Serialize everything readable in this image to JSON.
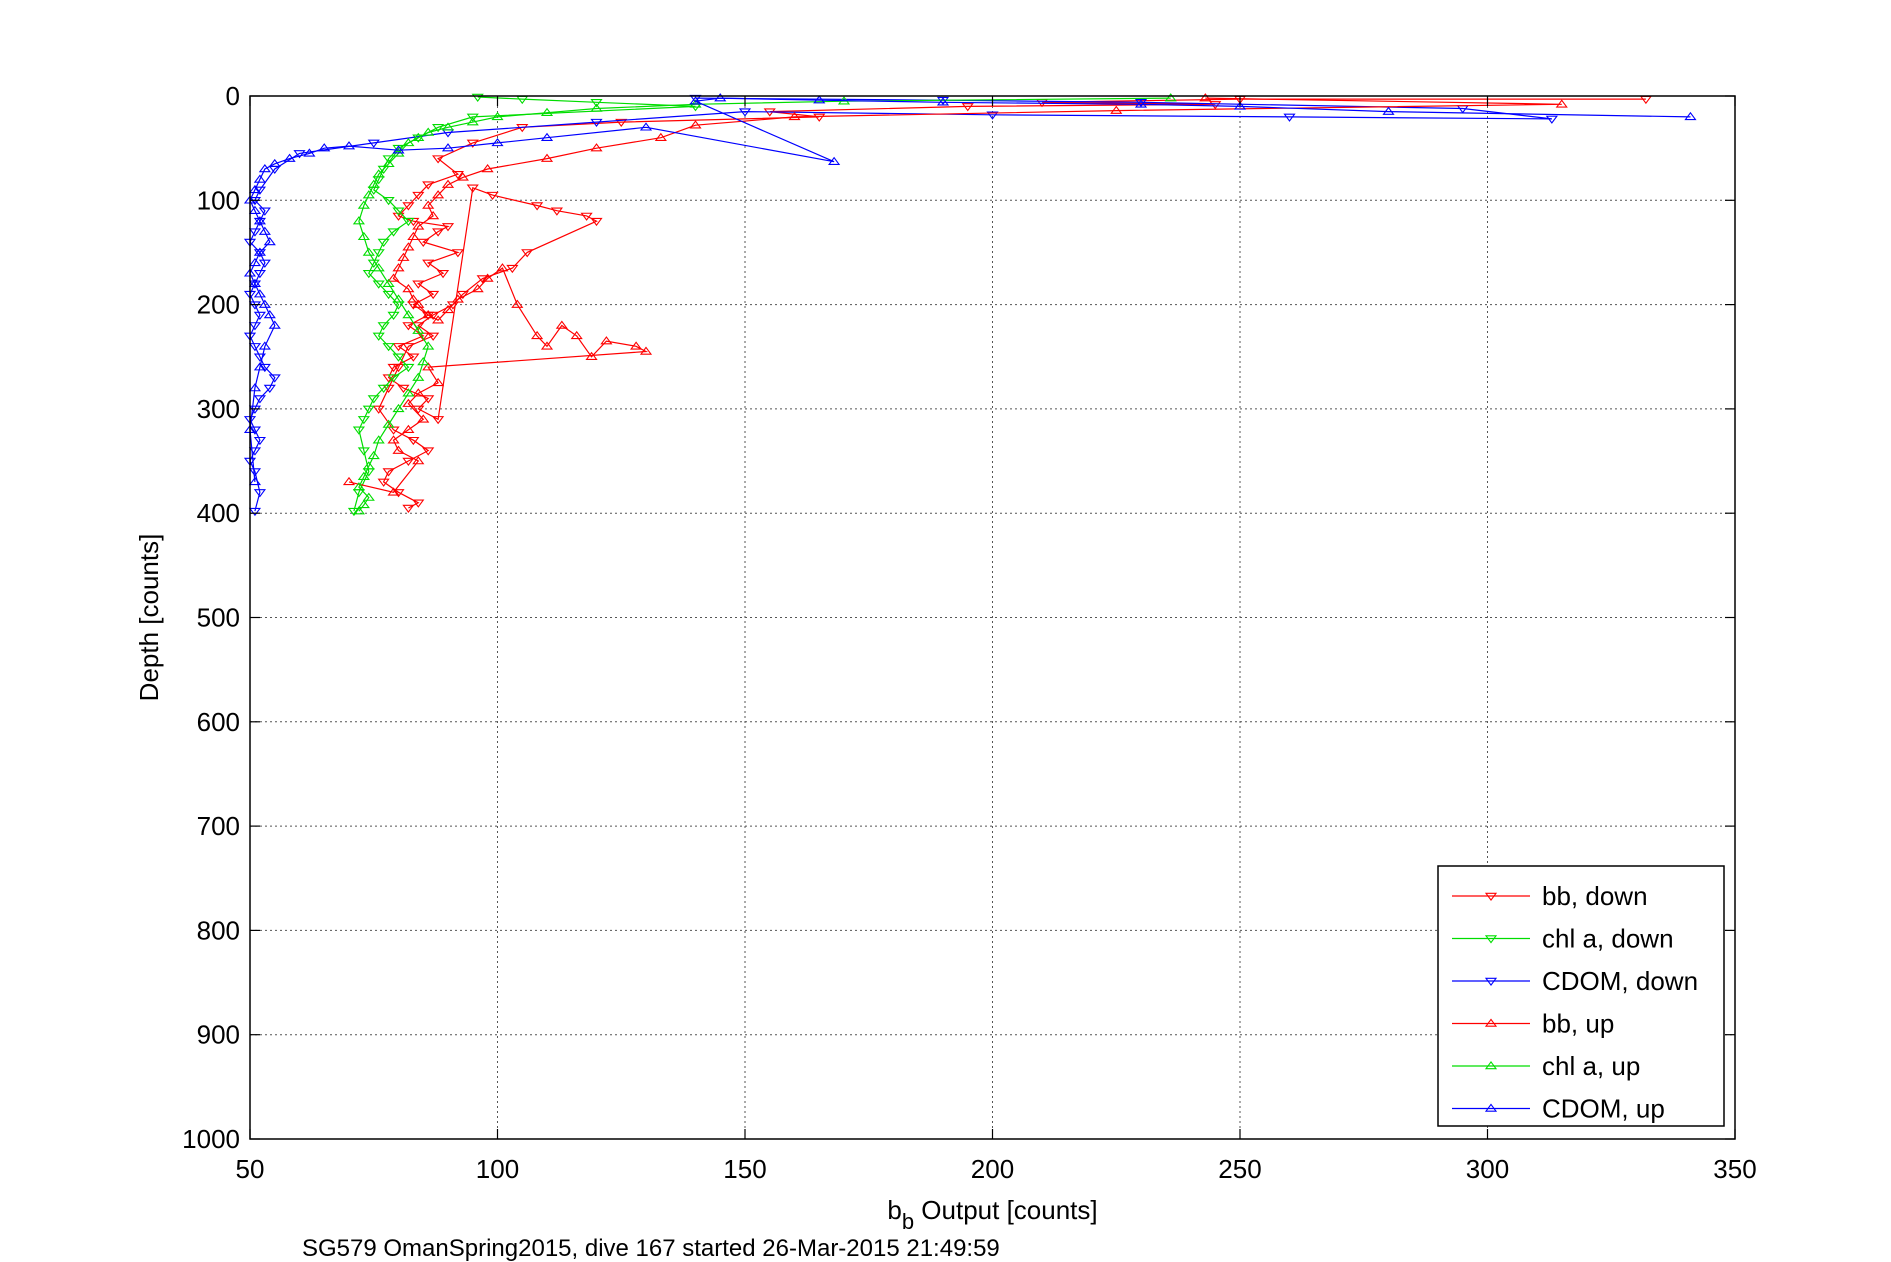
{
  "chart_data": {
    "type": "scatter",
    "xlabel_main": "b",
    "xlabel_sub": "b",
    "xlabel_rest": " Output [counts]",
    "ylabel": "Depth [counts]",
    "caption": "SG579 OmanSpring2015, dive 167 started 26-Mar-2015 21:49:59",
    "xlim": [
      50,
      350
    ],
    "ylim": [
      0,
      1000
    ],
    "y_reversed": true,
    "grid": true,
    "legend_position": "bottom-right",
    "xticks": [
      "50",
      "100",
      "150",
      "200",
      "250",
      "300",
      "350"
    ],
    "yticks": [
      "0",
      "100",
      "200",
      "300",
      "400",
      "500",
      "600",
      "700",
      "800",
      "900",
      "1000"
    ],
    "series": [
      {
        "name": "bb, down",
        "color": "#ff0000",
        "marker": "triangle-down",
        "x": [
          332,
          250,
          210,
          245,
          195,
          155,
          165,
          125,
          105,
          95,
          88,
          92,
          86,
          84,
          82,
          80,
          83,
          90,
          88,
          85,
          92,
          86,
          89,
          84,
          87,
          83,
          86,
          82,
          85,
          80,
          83,
          79,
          78,
          81,
          86,
          84,
          88,
          95,
          99,
          108,
          112,
          118,
          120,
          106,
          103,
          97,
          93,
          91,
          87,
          84,
          87,
          82,
          80,
          78,
          76,
          79,
          83,
          86,
          82,
          78,
          77,
          80,
          84,
          82
        ],
        "y": [
          3,
          3,
          6,
          8,
          10,
          15,
          20,
          25,
          30,
          45,
          60,
          75,
          85,
          95,
          105,
          115,
          120,
          125,
          130,
          140,
          150,
          160,
          170,
          180,
          190,
          200,
          210,
          220,
          230,
          240,
          250,
          260,
          270,
          280,
          290,
          300,
          310,
          88,
          95,
          105,
          110,
          115,
          120,
          150,
          165,
          175,
          190,
          200,
          210,
          220,
          230,
          240,
          260,
          280,
          300,
          320,
          330,
          340,
          350,
          360,
          370,
          380,
          390,
          395
        ]
      },
      {
        "name": "chl a, down",
        "color": "#00dd00",
        "marker": "triangle-down",
        "x": [
          96,
          105,
          120,
          140,
          95,
          88,
          84,
          80,
          78,
          77,
          76,
          75,
          78,
          80,
          82,
          79,
          77,
          76,
          75,
          74,
          76,
          78,
          80,
          79,
          77,
          76,
          78,
          80,
          82,
          79,
          77,
          75,
          74,
          73,
          72,
          73,
          74,
          72,
          71
        ],
        "y": [
          1,
          3,
          6,
          10,
          20,
          30,
          40,
          50,
          60,
          70,
          80,
          90,
          100,
          110,
          120,
          130,
          140,
          150,
          160,
          170,
          180,
          190,
          200,
          210,
          220,
          230,
          240,
          250,
          260,
          270,
          280,
          290,
          300,
          310,
          320,
          340,
          360,
          380,
          398
        ]
      },
      {
        "name": "CDOM, down",
        "color": "#0000ff",
        "marker": "triangle-down",
        "x": [
          140,
          190,
          230,
          295,
          313,
          260,
          200,
          150,
          120,
          90,
          75,
          60,
          55,
          52,
          51,
          53,
          52,
          51,
          50,
          52,
          53,
          52,
          51,
          50,
          51,
          52,
          51,
          50,
          51,
          52,
          53,
          55,
          54,
          52,
          51,
          50,
          51,
          52,
          51,
          50,
          51,
          52,
          51
        ],
        "y": [
          2,
          4,
          6,
          12,
          22,
          20,
          18,
          15,
          25,
          35,
          45,
          55,
          70,
          90,
          100,
          110,
          120,
          130,
          140,
          150,
          160,
          170,
          180,
          190,
          200,
          210,
          220,
          230,
          240,
          250,
          260,
          270,
          280,
          290,
          300,
          310,
          320,
          330,
          340,
          350,
          360,
          380,
          398
        ]
      },
      {
        "name": "bb, up",
        "color": "#ff0000",
        "marker": "triangle-up",
        "x": [
          243,
          315,
          225,
          160,
          140,
          133,
          120,
          110,
          98,
          93,
          90,
          88,
          86,
          87,
          84,
          83,
          82,
          81,
          80,
          79,
          82,
          83,
          84,
          86,
          88,
          90,
          92,
          96,
          98,
          101,
          104,
          108,
          110,
          113,
          116,
          119,
          122,
          128,
          130,
          86,
          88,
          84,
          82,
          85,
          82,
          79,
          80,
          84,
          79,
          70
        ],
        "y": [
          2,
          8,
          14,
          20,
          28,
          40,
          50,
          60,
          70,
          78,
          85,
          95,
          105,
          115,
          125,
          135,
          145,
          155,
          165,
          175,
          185,
          195,
          200,
          210,
          215,
          205,
          195,
          185,
          175,
          165,
          200,
          230,
          240,
          220,
          230,
          250,
          235,
          240,
          245,
          260,
          275,
          285,
          295,
          310,
          320,
          330,
          340,
          350,
          380,
          370
        ]
      },
      {
        "name": "chl a, up",
        "color": "#00dd00",
        "marker": "triangle-up",
        "x": [
          236,
          170,
          140,
          120,
          110,
          100,
          95,
          90,
          86,
          84,
          82,
          80,
          78,
          76,
          75,
          74,
          73,
          72,
          73,
          74,
          76,
          78,
          80,
          82,
          84,
          86,
          85,
          84,
          82,
          80,
          78,
          76,
          75,
          74,
          73,
          72,
          74,
          73,
          72
        ],
        "y": [
          2,
          5,
          8,
          12,
          16,
          20,
          25,
          30,
          35,
          40,
          45,
          55,
          65,
          75,
          85,
          95,
          105,
          120,
          135,
          150,
          165,
          180,
          195,
          210,
          225,
          240,
          255,
          270,
          285,
          300,
          315,
          330,
          345,
          355,
          365,
          375,
          385,
          392,
          398
        ]
      },
      {
        "name": "CDOM, up",
        "color": "#0000ff",
        "marker": "triangle-up",
        "x": [
          341,
          280,
          250,
          230,
          190,
          165,
          145,
          140,
          168,
          130,
          110,
          100,
          90,
          80,
          70,
          65,
          62,
          58,
          55,
          53,
          52,
          51,
          50,
          51,
          52,
          53,
          54,
          52,
          51,
          50,
          51,
          52,
          53,
          54,
          55,
          53,
          52,
          51,
          50,
          51
        ],
        "y": [
          20,
          15,
          10,
          8,
          6,
          4,
          2,
          5,
          63,
          30,
          40,
          45,
          50,
          52,
          48,
          50,
          55,
          60,
          65,
          70,
          80,
          90,
          100,
          110,
          120,
          130,
          140,
          150,
          160,
          170,
          180,
          190,
          200,
          210,
          220,
          240,
          260,
          280,
          320,
          370
        ]
      }
    ]
  }
}
